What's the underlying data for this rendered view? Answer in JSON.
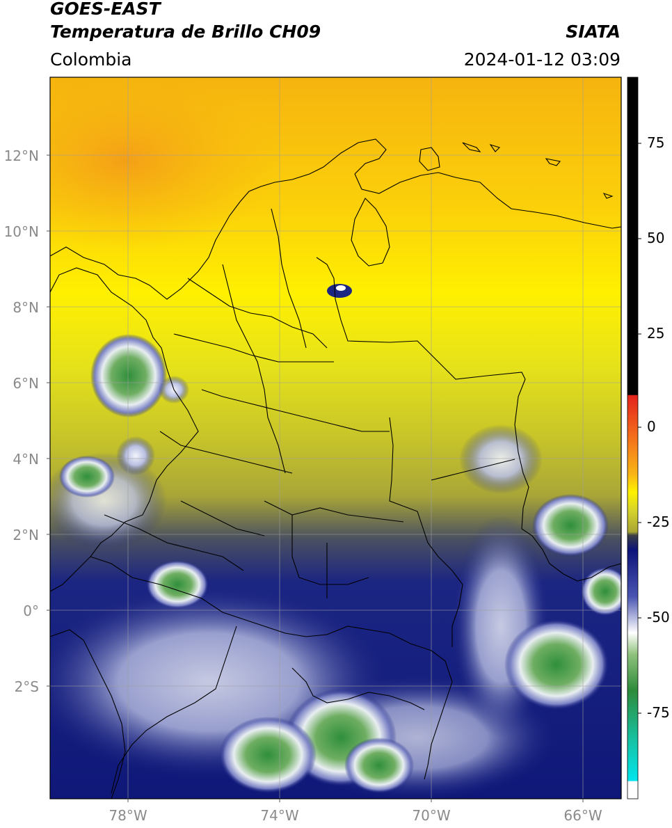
{
  "header": {
    "title_line1": "GOES-EAST",
    "title_line2": "Temperatura de Brillo CH09",
    "brand": "SIATA",
    "region": "Colombia",
    "timestamp": "2024-01-12 03:09"
  },
  "map": {
    "lat_labels": [
      "12°N",
      "10°N",
      "8°N",
      "6°N",
      "4°N",
      "2°N",
      "0°",
      "2°S"
    ],
    "lon_labels": [
      "78°W",
      "74°W",
      "70°W",
      "66°W"
    ],
    "grid_color": "#9e9e9e",
    "border_color": "#000000"
  },
  "colorbar": {
    "tick_labels": [
      "75",
      "50",
      "25",
      "0",
      "-25",
      "-50",
      "-75"
    ],
    "stops": {
      "black": "#000000",
      "red": "#e3231c",
      "orange": "#f79a17",
      "yellow": "#fff200",
      "olive": "#a8a632",
      "navy": "#0c137a",
      "white": "#ffffff",
      "green": "#2d8b3a",
      "teal": "#17c3a5",
      "cyan": "#00e5ee"
    }
  }
}
